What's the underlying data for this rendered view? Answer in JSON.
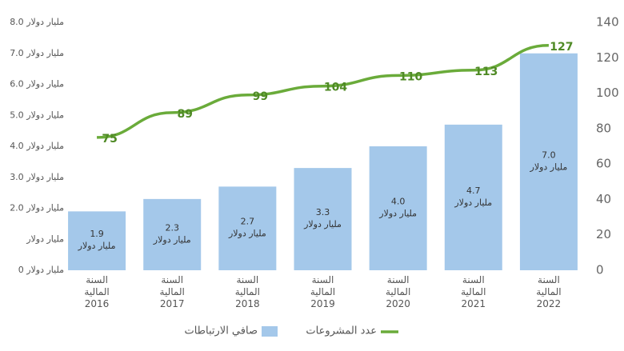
{
  "chart_data": {
    "type": "bar_line",
    "categories": [
      "السنة المالية 2016",
      "السنة المالية 2017",
      "السنة المالية 2018",
      "السنة المالية 2019",
      "السنة المالية 2020",
      "السنة المالية 2021",
      "السنة المالية 2022"
    ],
    "series": [
      {
        "name": "صافي الارتباطات",
        "type": "bar",
        "color": "#a4c8ea",
        "values": [
          1.9,
          2.3,
          2.7,
          3.3,
          4.0,
          4.7,
          7.0
        ],
        "value_labels": [
          "1.9",
          "2.3",
          "2.7",
          "3.3",
          "4.0",
          "4.7",
          "7.0"
        ],
        "value_label_unit": "مليار دولار"
      },
      {
        "name": "عدد المشروعات",
        "type": "line",
        "axis": "y2",
        "color": "#6aab3a",
        "values": [
          75,
          89,
          99,
          104,
          110,
          113,
          127
        ]
      }
    ],
    "ylim": [
      0,
      8
    ],
    "yticks": [
      {
        "value": 0,
        "label": "0 مليار دولار"
      },
      {
        "value": 1,
        "label": "مليار دولار"
      },
      {
        "value": 2,
        "label": "2.0 مليار دولار"
      },
      {
        "value": 3,
        "label": "3.0 مليار دولار"
      },
      {
        "value": 4,
        "label": "4.0 مليار دولار"
      },
      {
        "value": 5,
        "label": "5.0 مليار دولار"
      },
      {
        "value": 6,
        "label": "6.0 مليار دولار"
      },
      {
        "value": 7,
        "label": "7.0 مليار دولار"
      },
      {
        "value": 8,
        "label": "8.0 مليار دولار"
      }
    ],
    "y2lim": [
      0,
      140
    ],
    "y2ticks": [
      0,
      20,
      40,
      60,
      80,
      100,
      120,
      140
    ],
    "grid": false
  }
}
